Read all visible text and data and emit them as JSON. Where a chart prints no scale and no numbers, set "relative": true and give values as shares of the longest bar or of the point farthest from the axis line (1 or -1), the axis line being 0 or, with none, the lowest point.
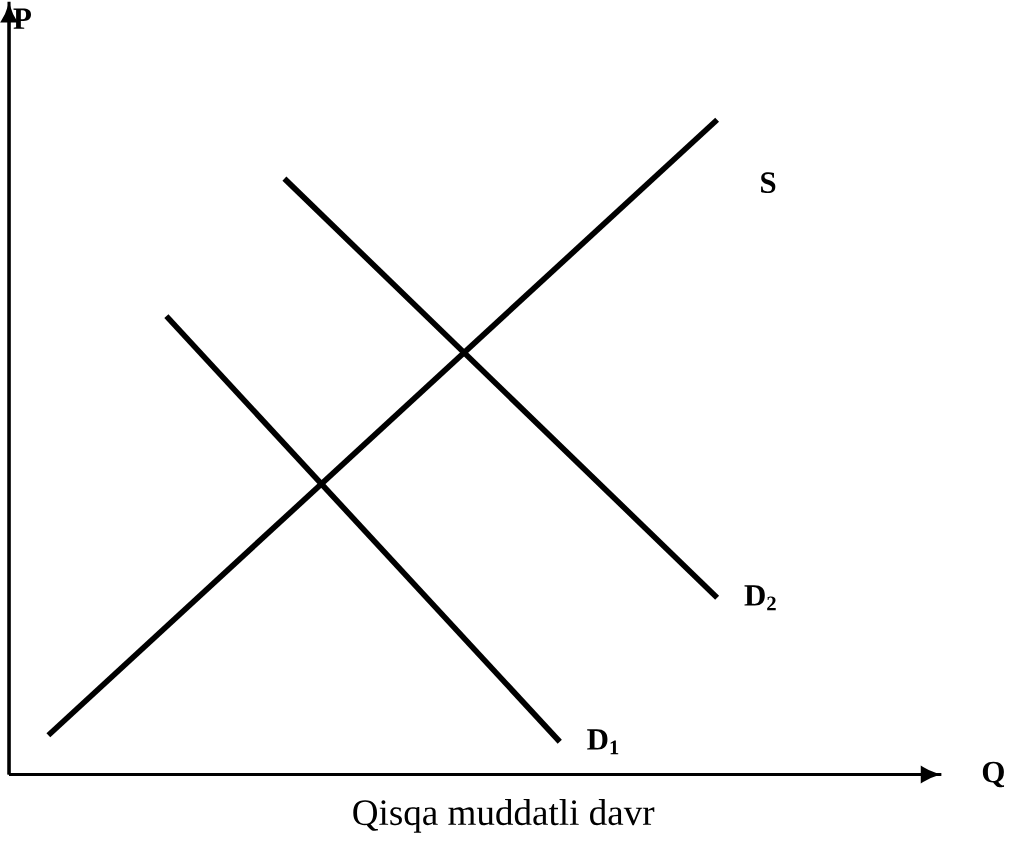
{
  "chart_data": {
    "type": "line",
    "relative": true,
    "xlabel": "Q",
    "ylabel": "P",
    "annotations": [
      "Qisqa muddatli davr"
    ],
    "marker": "none",
    "line_style": "solid",
    "categories": [
      null,
      null,
      null,
      null,
      null,
      null,
      null,
      null,
      null,
      null,
      null,
      null,
      null,
      null,
      null,
      null,
      null,
      null,
      null,
      null,
      null,
      null,
      null,
      null
    ],
    "series": [
      {
        "name": "S",
        "color": "#000000",
        "values": [
          null,
          0.06,
          null,
          null,
          null,
          null,
          null,
          null,
          null,
          null,
          null,
          null,
          null,
          null,
          null,
          null,
          null,
          null,
          1.0,
          null,
          null,
          null,
          null,
          null
        ]
      },
      {
        "name": "D$_{1}$",
        "color": "#000000",
        "values": [
          null,
          null,
          null,
          null,
          0.7,
          null,
          null,
          null,
          null,
          null,
          null,
          null,
          null,
          null,
          0.05,
          null,
          null,
          null,
          null,
          null,
          null,
          null,
          null,
          null
        ]
      },
      {
        "name": "D$_{2}$",
        "color": "#000000",
        "values": [
          null,
          null,
          null,
          null,
          null,
          null,
          null,
          0.91,
          null,
          null,
          null,
          null,
          null,
          null,
          null,
          null,
          null,
          null,
          0.27,
          null,
          null,
          null,
          null,
          null
        ]
      }
    ]
  }
}
